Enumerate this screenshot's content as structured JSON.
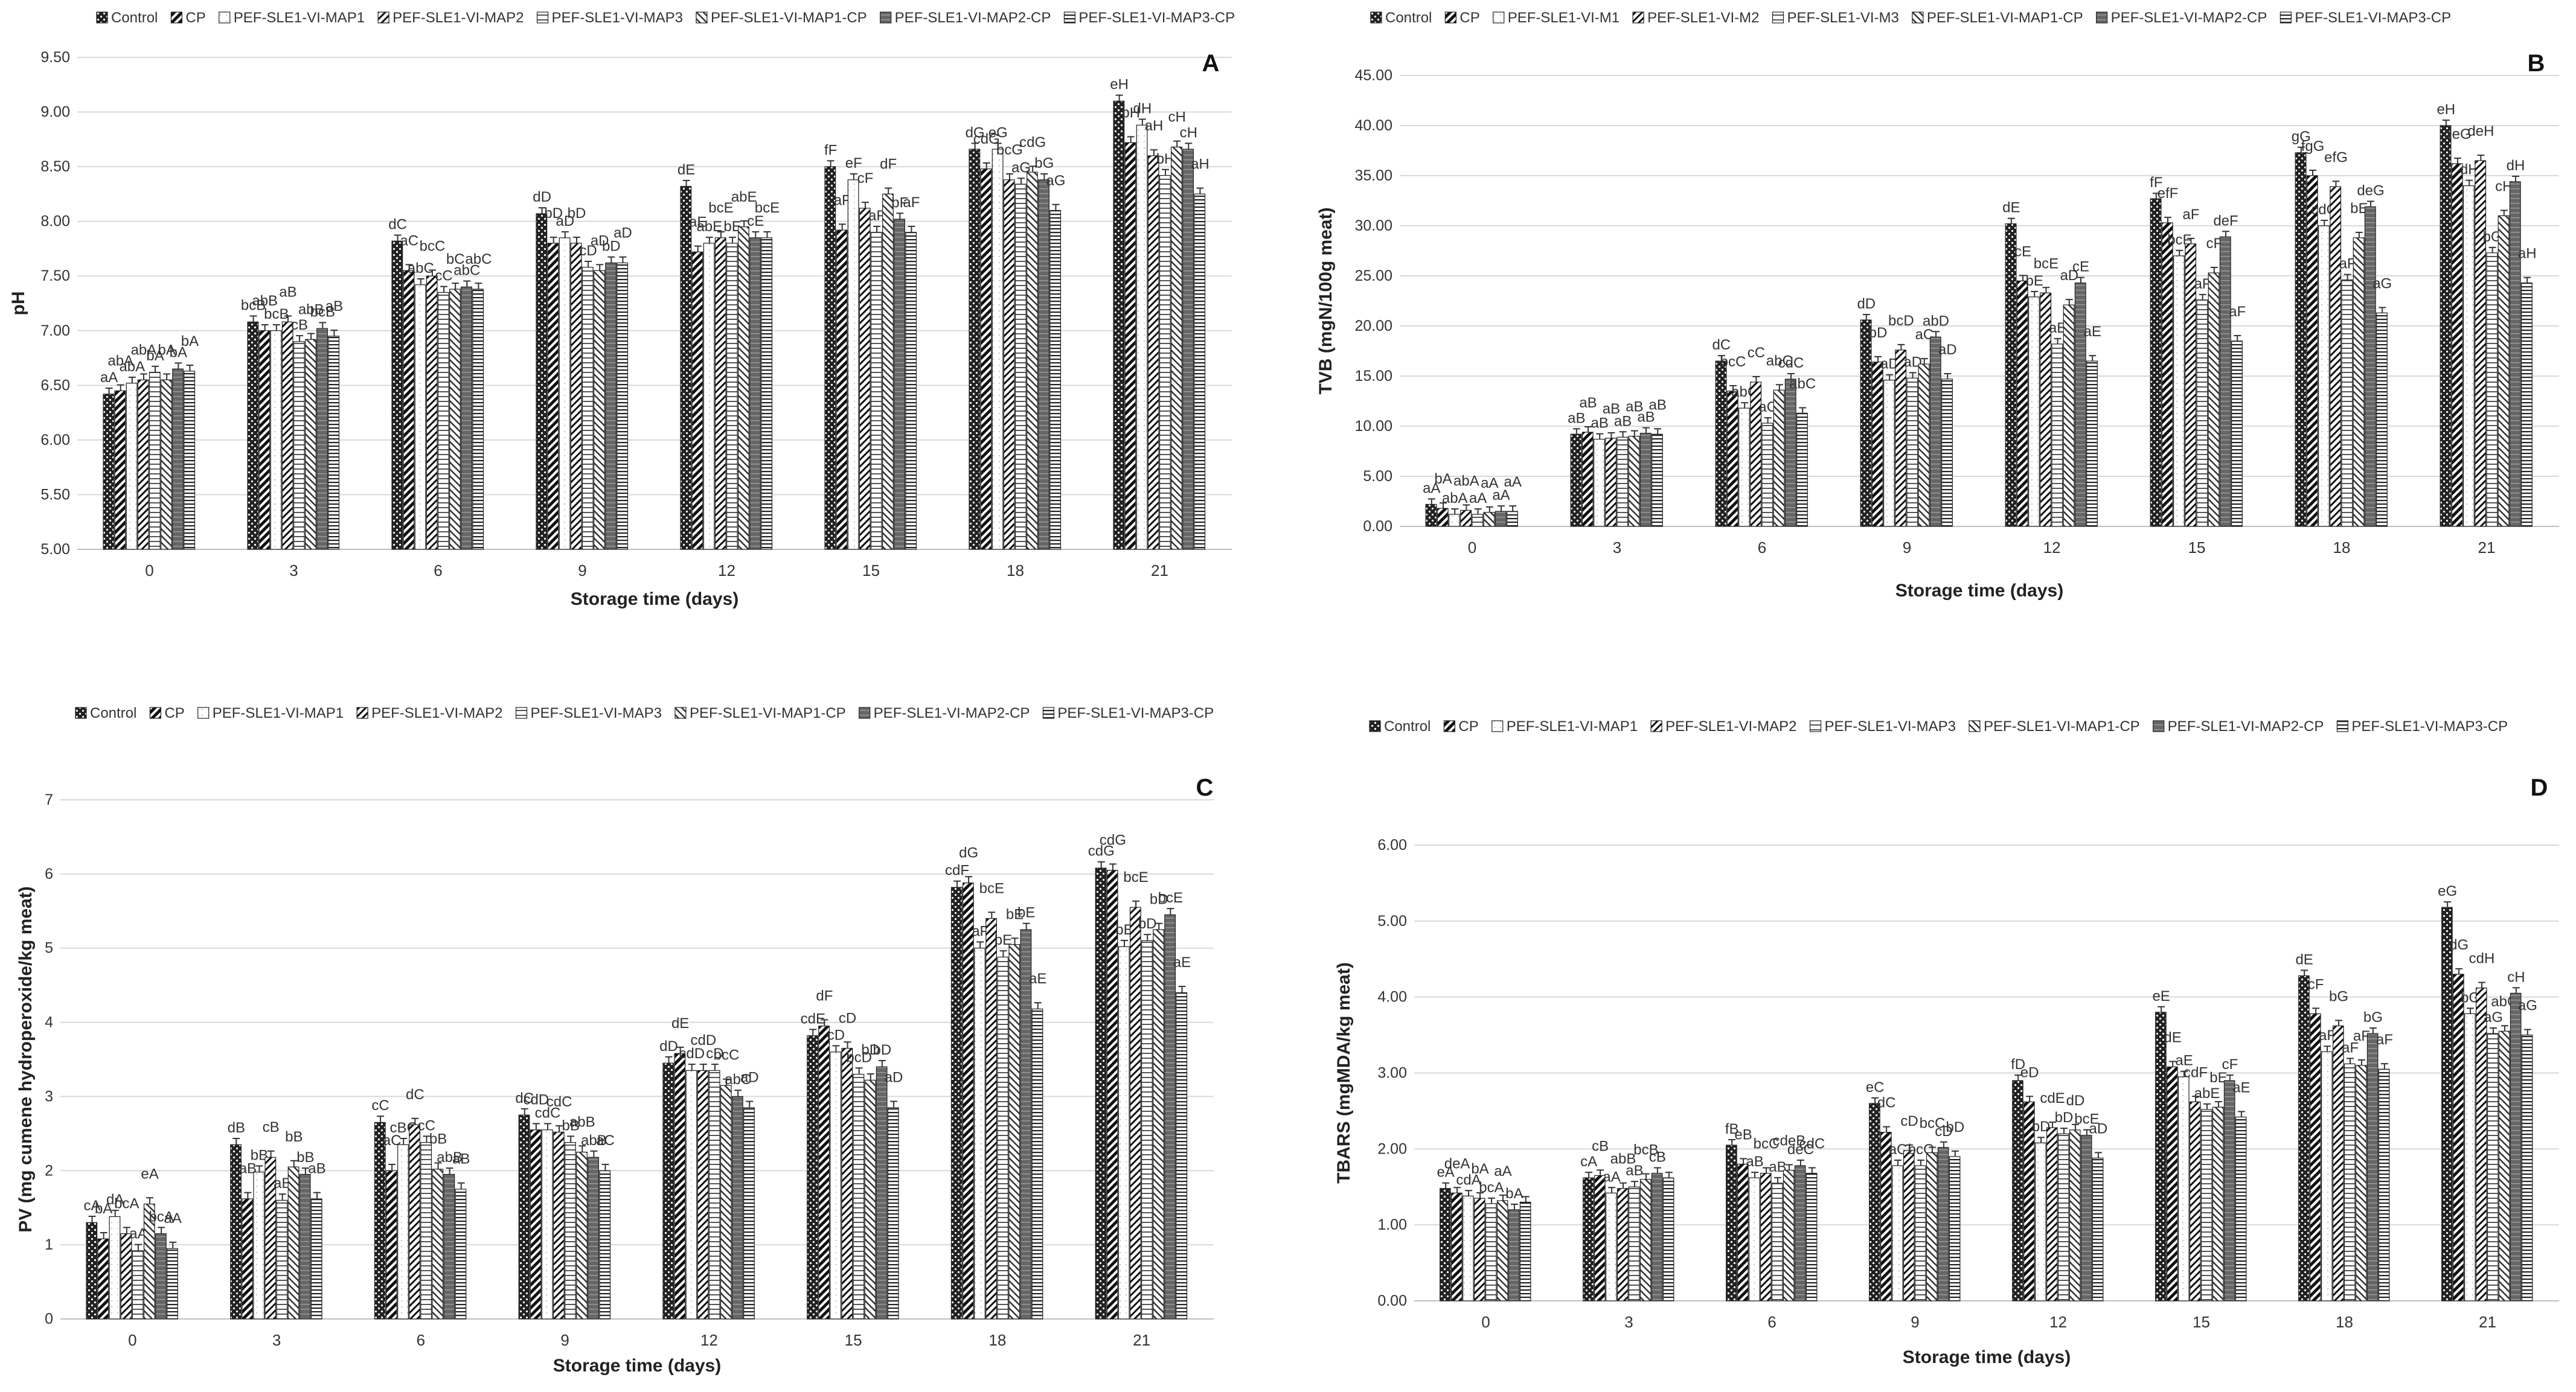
{
  "chart_data": [
    {
      "panel": "A",
      "type": "bar",
      "ylabel": "pH",
      "xlabel": "Storage time (days)",
      "ylim": [
        5.0,
        9.5
      ],
      "yticks": [
        "5.00",
        "5.50",
        "6.00",
        "6.50",
        "7.00",
        "7.50",
        "8.00",
        "8.50",
        "9.00",
        "9.50"
      ],
      "categories": [
        "0",
        "3",
        "6",
        "9",
        "12",
        "15",
        "18",
        "21"
      ],
      "series": [
        {
          "name": "Control",
          "values": [
            6.42,
            7.08,
            7.82,
            8.07,
            8.32,
            8.5,
            8.66,
            9.1
          ]
        },
        {
          "name": "CP",
          "values": [
            6.45,
            7.0,
            7.55,
            7.8,
            7.72,
            7.92,
            8.48,
            8.72
          ]
        },
        {
          "name": "PEF-SLE1-VI-MAP1",
          "values": [
            6.52,
            7.0,
            7.42,
            7.85,
            7.8,
            8.38,
            8.66,
            8.88
          ]
        },
        {
          "name": "PEF-SLE1-VI-MAP2",
          "values": [
            6.55,
            7.08,
            7.5,
            7.8,
            7.85,
            8.12,
            8.38,
            8.6
          ]
        },
        {
          "name": "PEF-SLE1-VI-MAP3",
          "values": [
            6.62,
            6.9,
            7.35,
            7.58,
            7.8,
            7.9,
            8.34,
            8.42
          ]
        },
        {
          "name": "PEF-SLE1-VI-MAP1-CP",
          "values": [
            6.55,
            6.92,
            7.38,
            7.55,
            7.95,
            8.25,
            8.45,
            8.68
          ]
        },
        {
          "name": "PEF-SLE1-VI-MAP2-CP",
          "values": [
            6.65,
            7.02,
            7.4,
            7.62,
            7.85,
            8.02,
            8.38,
            8.66
          ]
        },
        {
          "name": "PEF-SLE1-VI-MAP3-CP",
          "values": [
            6.63,
            6.95,
            7.38,
            7.62,
            7.85,
            7.9,
            8.1,
            8.25
          ]
        }
      ],
      "labels": [
        [
          "aA",
          "abA",
          "abA",
          "abA",
          "bA",
          "bA",
          "bA",
          "bA"
        ],
        [
          "bcB",
          "abB",
          "bcB",
          "aB",
          "cB",
          "abB",
          "bcB",
          "aB"
        ],
        [
          "dC",
          "aC",
          "abC",
          "bcC",
          "cC",
          "bC",
          "abC",
          "abC"
        ],
        [
          "dD",
          "bD",
          "aD",
          "bD",
          "cD",
          "aD",
          "bD",
          "aD"
        ],
        [
          "dE",
          "aE",
          "abE",
          "bcE",
          "bE",
          "abE",
          "cE",
          "bcE"
        ],
        [
          "fF",
          "aF",
          "eF",
          "cF",
          "aF",
          "dF",
          "bF",
          "aF"
        ],
        [
          "dG",
          "cdG",
          "eG",
          "bcG",
          "aG",
          "cdG",
          "bG",
          "aG"
        ],
        [
          "eH",
          "bH",
          "dH",
          "aH",
          "bH",
          "cH",
          "cH",
          "aH"
        ]
      ]
    },
    {
      "panel": "B",
      "type": "bar",
      "ylabel": "TVB (mgN/100g meat)",
      "xlabel": "Storage time (days)",
      "ylim": [
        0,
        45
      ],
      "yticks": [
        "0.00",
        "5.00",
        "10.00",
        "15.00",
        "20.00",
        "25.00",
        "30.00",
        "35.00",
        "40.00",
        "45.00"
      ],
      "categories": [
        "0",
        "3",
        "6",
        "9",
        "12",
        "15",
        "18",
        "21"
      ],
      "series": [
        {
          "name": "Control",
          "values": [
            2.2,
            9.2,
            16.5,
            20.6,
            30.2,
            32.7,
            37.3,
            40.0
          ]
        },
        {
          "name": "CP",
          "values": [
            1.8,
            9.4,
            13.5,
            16.4,
            24.5,
            30.3,
            35.0,
            36.2
          ]
        },
        {
          "name": "PEF-SLE1-VI-M1",
          "values": [
            1.2,
            8.7,
            11.8,
            14.6,
            22.9,
            27.0,
            30.0,
            34.0
          ]
        },
        {
          "name": "PEF-SLE1-VI-M2",
          "values": [
            1.6,
            8.8,
            14.4,
            17.6,
            23.3,
            28.2,
            33.9,
            36.5
          ]
        },
        {
          "name": "PEF-SLE1-VI-M3",
          "values": [
            1.2,
            8.9,
            10.3,
            14.8,
            18.2,
            22.6,
            24.6,
            27.3
          ]
        },
        {
          "name": "PEF-SLE1-VI-MAP1-CP",
          "values": [
            1.4,
            9.0,
            13.6,
            16.2,
            22.1,
            25.3,
            28.8,
            31.0
          ]
        },
        {
          "name": "PEF-SLE1-VI-MAP2-CP",
          "values": [
            1.5,
            9.3,
            14.7,
            18.9,
            24.3,
            28.9,
            31.9,
            34.4
          ]
        },
        {
          "name": "PEF-SLE1-VI-MAP3-CP",
          "values": [
            1.5,
            9.2,
            11.3,
            14.7,
            16.5,
            18.5,
            21.3,
            24.3
          ]
        }
      ],
      "labels": [
        [
          "aA",
          "bA",
          "abA",
          "abA",
          "aA",
          "aA",
          "aA",
          "aA"
        ],
        [
          "aB",
          "aB",
          "aB",
          "aB",
          "aB",
          "aB",
          "aB",
          "aB"
        ],
        [
          "dC",
          "bcC",
          "abC",
          "cC",
          "aC",
          "abC",
          "cdC",
          "abC"
        ],
        [
          "dD",
          "bD",
          "aD",
          "bcD",
          "aD",
          "aC",
          "abD",
          "aD"
        ],
        [
          "dE",
          "cE",
          "bE",
          "bcE",
          "aE",
          "aD",
          "cE",
          "aE"
        ],
        [
          "fF",
          "efF",
          "bcF",
          "aF",
          "aF",
          "cF",
          "deF",
          "aF"
        ],
        [
          "gG",
          "fgG",
          "cdG",
          "efG",
          "aF",
          "bE",
          "deG",
          "aG"
        ],
        [
          "eH",
          "deG",
          "dH",
          "deH",
          "bG",
          "cH",
          "dH",
          "aH"
        ]
      ]
    },
    {
      "panel": "C",
      "type": "bar",
      "ylabel": "PV (mg cumene hydroperoxide/kg meat)",
      "xlabel": "Storage time (days)",
      "ylim": [
        0,
        7
      ],
      "yticks": [
        "0",
        "1",
        "2",
        "3",
        "4",
        "5",
        "6",
        "7"
      ],
      "categories": [
        "0",
        "3",
        "6",
        "9",
        "12",
        "15",
        "18",
        "21"
      ],
      "series": [
        {
          "name": "Control",
          "values": [
            1.3,
            2.35,
            2.65,
            2.75,
            3.45,
            3.82,
            5.82,
            6.08
          ]
        },
        {
          "name": "CP",
          "values": [
            1.08,
            1.62,
            2.0,
            2.55,
            3.58,
            3.95,
            5.88,
            6.05
          ]
        },
        {
          "name": "PEF-SLE1-VI-MAP1",
          "values": [
            1.38,
            1.98,
            2.35,
            2.55,
            3.35,
            3.6,
            5.0,
            5.02
          ]
        },
        {
          "name": "PEF-SLE1-VI-MAP2",
          "values": [
            1.15,
            2.18,
            2.62,
            2.52,
            3.35,
            3.65,
            5.4,
            5.55
          ]
        },
        {
          "name": "PEF-SLE1-VI-MAP3",
          "values": [
            0.92,
            1.6,
            2.38,
            2.38,
            3.35,
            3.3,
            4.88,
            5.1
          ]
        },
        {
          "name": "PEF-SLE1-VI-MAP1-CP",
          "values": [
            1.55,
            2.05,
            2.02,
            2.25,
            3.15,
            3.22,
            5.05,
            5.25
          ]
        },
        {
          "name": "PEF-SLE1-VI-MAP2-CP",
          "values": [
            1.15,
            1.95,
            1.95,
            2.18,
            3.0,
            3.4,
            5.25,
            5.45
          ]
        },
        {
          "name": "PEF-SLE1-VI-MAP3-CP",
          "values": [
            0.95,
            1.62,
            1.75,
            2.0,
            2.85,
            2.85,
            4.18,
            4.4
          ]
        }
      ],
      "labels": [
        [
          "cA",
          "bA",
          "dA",
          "bcA",
          "aA",
          "eA",
          "bcA",
          "aA"
        ],
        [
          "dB",
          "aB",
          "bB",
          "cB",
          "aB",
          "bB",
          "bB",
          "aB"
        ],
        [
          "cC",
          "aC",
          "cBC",
          "dC",
          "cC",
          "bB",
          "abB",
          "aB"
        ],
        [
          "dC",
          "cdD",
          "cdC",
          "cdC",
          "bB",
          "abB",
          "abB",
          "aC"
        ],
        [
          "dD",
          "dE",
          "cdD",
          "cdD",
          "cD",
          "bcC",
          "abC",
          "aD"
        ],
        [
          "cdE",
          "dF",
          "cD",
          "cD",
          "bcD",
          "bD",
          "bD",
          "aD"
        ],
        [
          "cdF",
          "dG",
          "aF",
          "bcE",
          "bE",
          "bE",
          "bE",
          "aE"
        ],
        [
          "cdG",
          "cdG",
          "bE",
          "bcE",
          "bD",
          "bD",
          "bcE",
          "aE"
        ]
      ]
    },
    {
      "panel": "D",
      "type": "bar",
      "ylabel": "TBARS (mgMDA/kg meat)",
      "xlabel": "Storage time (days)",
      "ylim": [
        0,
        6
      ],
      "yticks": [
        "0.00",
        "1.00",
        "2.00",
        "3.00",
        "4.00",
        "5.00",
        "6.00"
      ],
      "categories": [
        "0",
        "3",
        "6",
        "9",
        "12",
        "15",
        "18",
        "21"
      ],
      "series": [
        {
          "name": "Control",
          "values": [
            1.48,
            1.62,
            2.05,
            2.6,
            2.9,
            3.8,
            4.28,
            5.18
          ]
        },
        {
          "name": "CP",
          "values": [
            1.42,
            1.65,
            1.8,
            2.22,
            2.62,
            3.08,
            3.78,
            4.3
          ]
        },
        {
          "name": "PEF-SLE1-VI-MAP1",
          "values": [
            1.38,
            1.42,
            1.62,
            1.78,
            2.08,
            2.95,
            3.28,
            3.78
          ]
        },
        {
          "name": "PEF-SLE1-VI-MAP2",
          "values": [
            1.35,
            1.48,
            1.68,
            1.98,
            2.28,
            2.62,
            3.62,
            4.12
          ]
        },
        {
          "name": "PEF-SLE1-VI-MAP3",
          "values": [
            1.28,
            1.5,
            1.55,
            1.78,
            2.2,
            2.52,
            3.12,
            3.52
          ]
        },
        {
          "name": "PEF-SLE1-VI-MAP1-CP",
          "values": [
            1.32,
            1.6,
            1.72,
            1.95,
            2.25,
            2.55,
            3.1,
            3.55
          ]
        },
        {
          "name": "PEF-SLE1-VI-MAP2-CP",
          "values": [
            1.2,
            1.68,
            1.78,
            2.02,
            2.18,
            2.9,
            3.52,
            4.05
          ]
        },
        {
          "name": "PEF-SLE1-VI-MAP3-CP",
          "values": [
            1.3,
            1.62,
            1.68,
            1.9,
            1.88,
            2.42,
            3.05,
            3.5
          ]
        }
      ],
      "labels": [
        [
          "eA",
          "deA",
          "cdA",
          "bA",
          "bcA",
          "aA",
          "bA",
          ""
        ],
        [
          "cA",
          "cB",
          "aA",
          "abB",
          "aB",
          "bcB",
          "cB",
          ""
        ],
        [
          "fB",
          "eB",
          "aB",
          "bcC",
          "aB",
          "cdeB",
          "deC",
          "cdC"
        ],
        [
          "eC",
          "dC",
          "aC",
          "cD",
          "bcC",
          "bcC",
          "cD",
          "bD"
        ],
        [
          "fD",
          "eD",
          "bD",
          "cdE",
          "bD",
          "dD",
          "bcE",
          "aD"
        ],
        [
          "eE",
          "dE",
          "aE",
          "cdF",
          "abE",
          "bE",
          "cF",
          "aE"
        ],
        [
          "dE",
          "cF",
          "aF",
          "bG",
          "aF",
          "aF",
          "bG",
          "aF"
        ],
        [
          "eG",
          "dG",
          "bG",
          "cdH",
          "aG",
          "abG",
          "cH",
          "aG"
        ]
      ]
    }
  ]
}
